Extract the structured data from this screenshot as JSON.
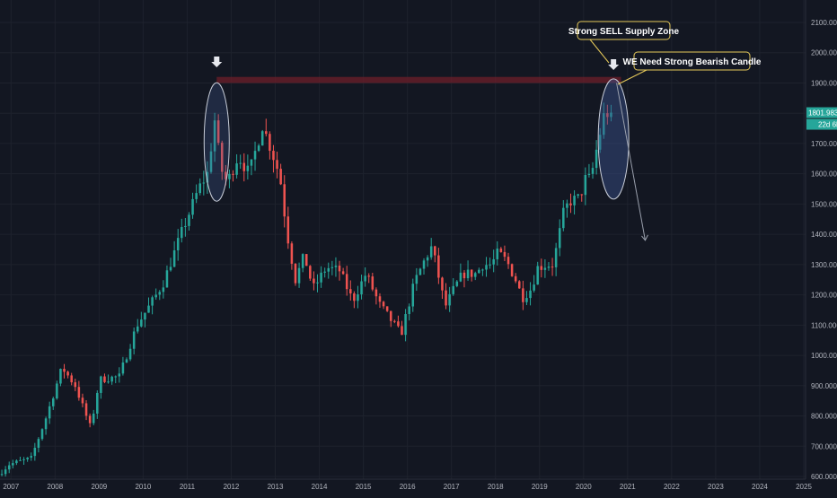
{
  "chart_data": {
    "type": "candlestick",
    "title": "",
    "xlabel": "",
    "ylabel": "",
    "ylim": [
      600,
      2200
    ],
    "xlim_years": [
      2006.75,
      2025.0
    ],
    "y_ticks": [
      "600.000",
      "700.000",
      "800.000",
      "900.000",
      "1000.000",
      "1100.000",
      "1200.000",
      "1300.000",
      "1400.000",
      "1500.000",
      "1600.000",
      "1700.000",
      "1800.000",
      "1900.000",
      "2000.000",
      "2100.000"
    ],
    "x_ticks": [
      "2007",
      "2008",
      "2009",
      "2010",
      "2011",
      "2012",
      "2013",
      "2014",
      "2015",
      "2016",
      "2017",
      "2018",
      "2019",
      "2020",
      "2021",
      "2022",
      "2023",
      "2024",
      "2025"
    ],
    "grid": true,
    "series_anchors": [
      [
        2006.75,
        605
      ],
      [
        2007.0,
        640
      ],
      [
        2007.5,
        660
      ],
      [
        2007.85,
        800
      ],
      [
        2008.2,
        960
      ],
      [
        2008.5,
        900
      ],
      [
        2008.85,
        760
      ],
      [
        2009.05,
        920
      ],
      [
        2009.5,
        930
      ],
      [
        2009.9,
        1100
      ],
      [
        2010.3,
        1190
      ],
      [
        2010.5,
        1240
      ],
      [
        2010.9,
        1400
      ],
      [
        2011.3,
        1550
      ],
      [
        2011.5,
        1600
      ],
      [
        2011.67,
        1780
      ],
      [
        2011.8,
        1620
      ],
      [
        2011.95,
        1570
      ],
      [
        2012.2,
        1660
      ],
      [
        2012.45,
        1600
      ],
      [
        2012.75,
        1760
      ],
      [
        2012.95,
        1680
      ],
      [
        2013.15,
        1590
      ],
      [
        2013.3,
        1410
      ],
      [
        2013.5,
        1250
      ],
      [
        2013.7,
        1330
      ],
      [
        2013.9,
        1220
      ],
      [
        2014.2,
        1290
      ],
      [
        2014.5,
        1280
      ],
      [
        2014.8,
        1180
      ],
      [
        2015.1,
        1270
      ],
      [
        2015.4,
        1170
      ],
      [
        2015.65,
        1120
      ],
      [
        2015.9,
        1070
      ],
      [
        2016.2,
        1240
      ],
      [
        2016.45,
        1320
      ],
      [
        2016.6,
        1360
      ],
      [
        2016.9,
        1160
      ],
      [
        2017.1,
        1220
      ],
      [
        2017.3,
        1270
      ],
      [
        2017.6,
        1270
      ],
      [
        2017.75,
        1300
      ],
      [
        2017.95,
        1300
      ],
      [
        2018.1,
        1340
      ],
      [
        2018.3,
        1310
      ],
      [
        2018.5,
        1250
      ],
      [
        2018.65,
        1190
      ],
      [
        2018.85,
        1220
      ],
      [
        2019.0,
        1290
      ],
      [
        2019.2,
        1300
      ],
      [
        2019.35,
        1300
      ],
      [
        2019.6,
        1480
      ],
      [
        2019.75,
        1510
      ],
      [
        2019.95,
        1520
      ],
      [
        2020.1,
        1590
      ],
      [
        2020.2,
        1580
      ],
      [
        2020.35,
        1690
      ],
      [
        2020.5,
        1790
      ],
      [
        2020.6,
        1802
      ]
    ],
    "supply_zone": {
      "y_low": 1900,
      "y_high": 1920,
      "x_start": 2011.67,
      "x_end": 2020.85
    },
    "current_price": "1801.983",
    "countdown": "22d 6h",
    "annotations": [
      "Strong SELL Supply Zone",
      "WE Need Strong Bearish Candle"
    ],
    "colors": {
      "up": "#26a69a",
      "down": "#ef5350",
      "background": "#131722",
      "grid": "#1e222d",
      "zone": "#6d1f2a",
      "annotation_border": "#e5c95a",
      "axis_text": "#b2b5be",
      "ellipse_stroke": "#c8cdd8"
    }
  }
}
